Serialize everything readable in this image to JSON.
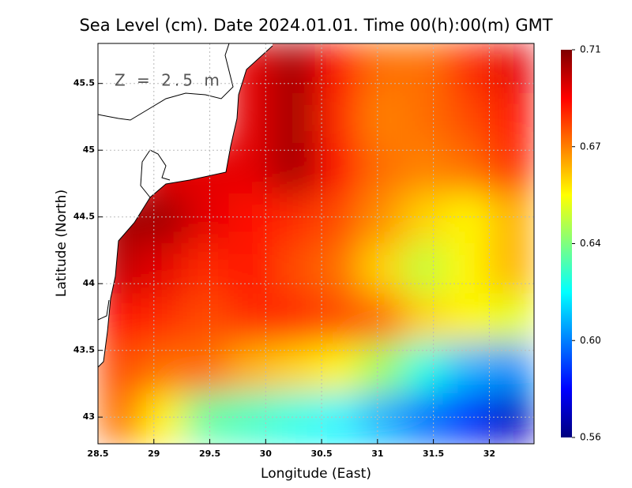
{
  "chart_data": {
    "type": "heatmap",
    "title": "Sea Level (cm). Date 2024.01.01. Time 00(h):00(m) GMT",
    "xlabel": "Longitude (East)",
    "ylabel": "Latitude (North)",
    "annotation": "Z = 2.5 m",
    "xlim": [
      28.5,
      32.4
    ],
    "ylim": [
      42.8,
      45.8
    ],
    "xticks": [
      28.5,
      29,
      29.5,
      30,
      30.5,
      31,
      31.5,
      32
    ],
    "yticks": [
      43,
      43.5,
      44,
      44.5,
      45,
      45.5
    ],
    "grid": true,
    "clim": [
      0.56,
      0.71
    ],
    "cticks": [
      {
        "value": 0.56,
        "label": "0.56"
      },
      {
        "value": 0.5975,
        "label": "0.60"
      },
      {
        "value": 0.635,
        "label": "0.64"
      },
      {
        "value": 0.6725,
        "label": "0.67"
      },
      {
        "value": 0.71,
        "label": "0.71"
      }
    ],
    "colormap": [
      "#00007f",
      "#0000ff",
      "#007fff",
      "#00ffff",
      "#7fff7f",
      "#ffff00",
      "#ff7f00",
      "#ff0000",
      "#7f0000"
    ],
    "z": [
      [
        null,
        null,
        null,
        0.695,
        0.705,
        0.69,
        0.675,
        0.675,
        0.685,
        0.695
      ],
      [
        null,
        null,
        null,
        0.695,
        0.705,
        0.685,
        0.672,
        0.675,
        0.68,
        0.69
      ],
      [
        null,
        0.695,
        0.695,
        0.695,
        0.705,
        0.69,
        0.675,
        0.672,
        0.675,
        0.685
      ],
      [
        0.705,
        0.705,
        0.695,
        0.69,
        0.685,
        0.68,
        0.67,
        0.66,
        0.655,
        0.665
      ],
      [
        0.7,
        0.695,
        0.685,
        0.69,
        0.68,
        0.675,
        0.66,
        0.645,
        0.655,
        0.665
      ],
      [
        0.69,
        0.685,
        0.68,
        0.685,
        0.685,
        0.68,
        0.675,
        0.66,
        0.655,
        0.65
      ],
      [
        0.68,
        0.675,
        0.675,
        0.665,
        0.66,
        0.655,
        0.64,
        0.62,
        0.605,
        0.6
      ],
      [
        0.675,
        0.655,
        0.63,
        0.625,
        0.62,
        0.615,
        0.605,
        0.595,
        0.585,
        0.57
      ]
    ]
  }
}
